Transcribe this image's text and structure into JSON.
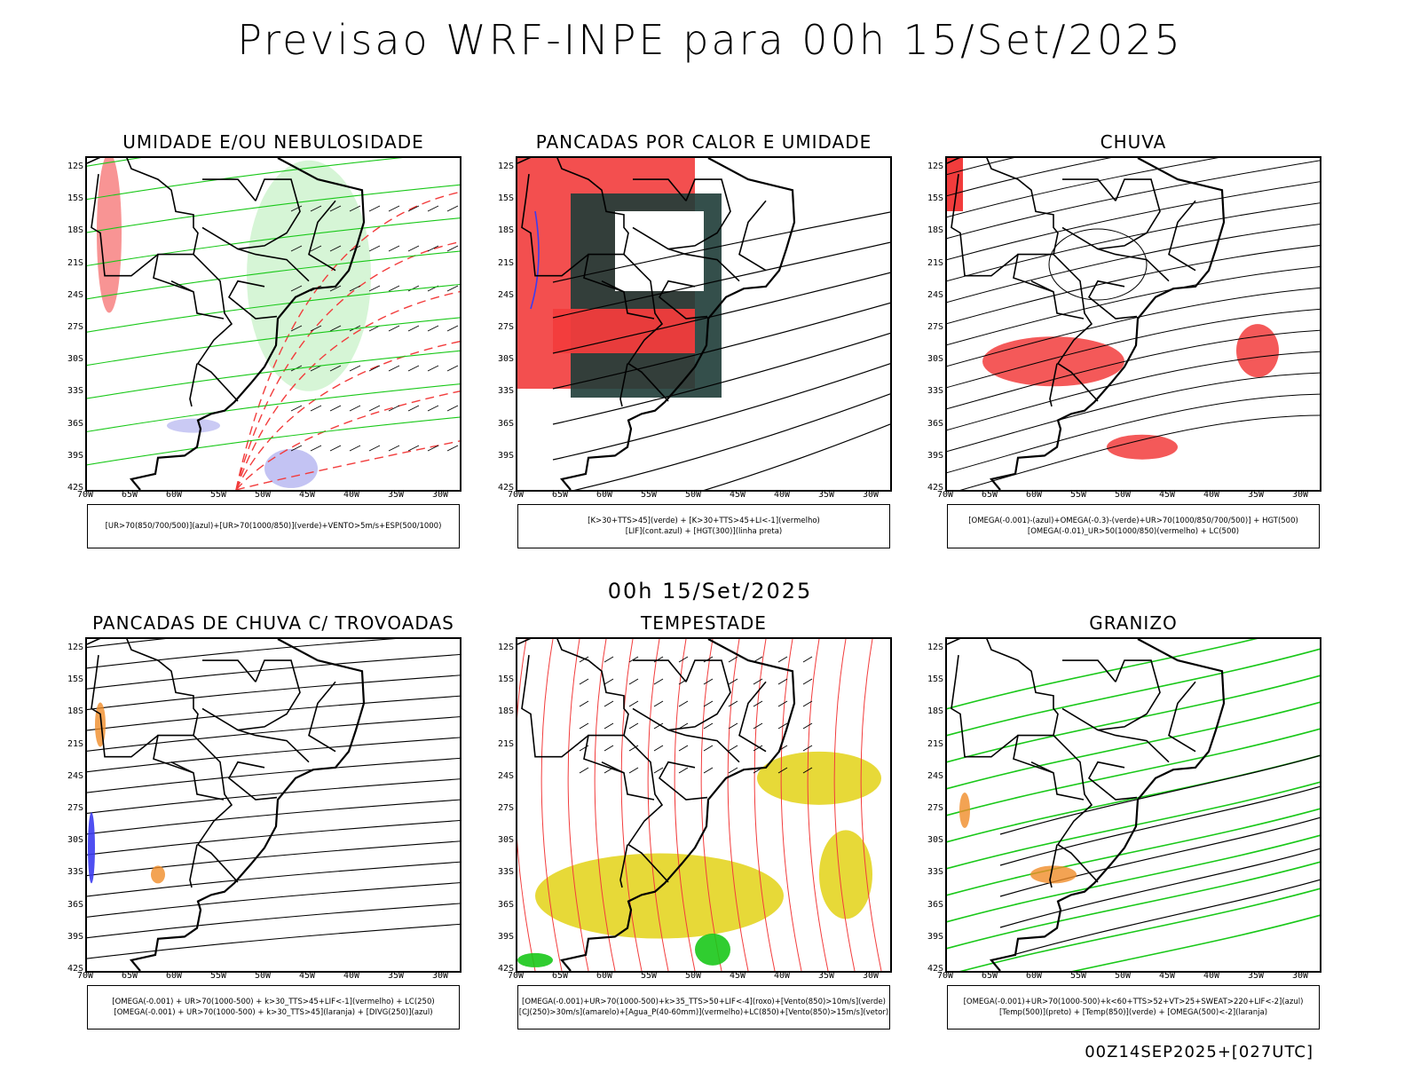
{
  "title": "Previsao WRF-INPE  para 00h 15/Set/2025",
  "subtitle": "00h 15/Set/2025",
  "footer": "00Z14SEP2025+[027UTC]",
  "lat_labels": [
    "12S",
    "15S",
    "18S",
    "21S",
    "24S",
    "27S",
    "30S",
    "33S",
    "36S",
    "39S",
    "42S"
  ],
  "lon_labels": [
    "70W",
    "65W",
    "60W",
    "55W",
    "50W",
    "45W",
    "40W",
    "35W",
    "30W"
  ],
  "panels": [
    {
      "title": "UMIDADE E/OU NEBULOSIDADE",
      "legend": [
        "[UR>70(850/700/500)](azul)+[UR>70(1000/850)](verde)+VENTO>5m/s+ESP(500/1000)"
      ]
    },
    {
      "title": "PANCADAS POR CALOR E UMIDADE",
      "legend": [
        "[K>30+TTS>45](verde) + [K>30+TTS>45+LI<-1](vermelho)",
        "[LIF](cont.azul) + [HGT(300)](linha preta)"
      ]
    },
    {
      "title": "CHUVA",
      "legend": [
        "[OMEGA(-0.001)-(azul)+OMEGA(-0.3)-(verde)+UR>70(1000/850/700/500)] + HGT(500)",
        "[OMEGA(-0.01)_UR>50(1000/850)(vermelho) + LC(500)"
      ]
    },
    {
      "title": "PANCADAS DE CHUVA C/ TROVOADAS",
      "legend": [
        "[OMEGA(-0.001) + UR>70(1000-500) + k>30_TTS>45+LIF<-1](vermelho) + LC(250)",
        "[OMEGA(-0.001) + UR>70(1000-500) + k>30_TTS>45](laranja) + [DIVG(250)](azul)"
      ]
    },
    {
      "title": "TEMPESTADE",
      "legend": [
        "[OMEGA(-0.001)+UR>70(1000-500)+k>35_TTS>50+LIF<-4](roxo)+[Vento(850)>10m/s](verde)",
        "[CJ(250)>30m/s](amarelo)+[Agua_P(40-60mm)](vermelho)+LC(850)+[Vento(850)>15m/s](vetor)"
      ]
    },
    {
      "title": "GRANIZO",
      "legend": [
        "[OMEGA(-0.001)+UR>70(1000-500)+k<60+TTS>52+VT>25+SWEAT>220+LIF<-2](azul)",
        "[Temp(500)](preto) + [Temp(850)](verde) + [OMEGA(500)<-2](laranja)"
      ]
    }
  ],
  "colors": {
    "red": "#f23c3c",
    "green": "#19c819",
    "blue": "#3c3cf0",
    "lightblue": "#b4b4f0",
    "darkgreen": "#1e3c37",
    "yellow": "#e6d72d",
    "orange": "#f08c28"
  }
}
